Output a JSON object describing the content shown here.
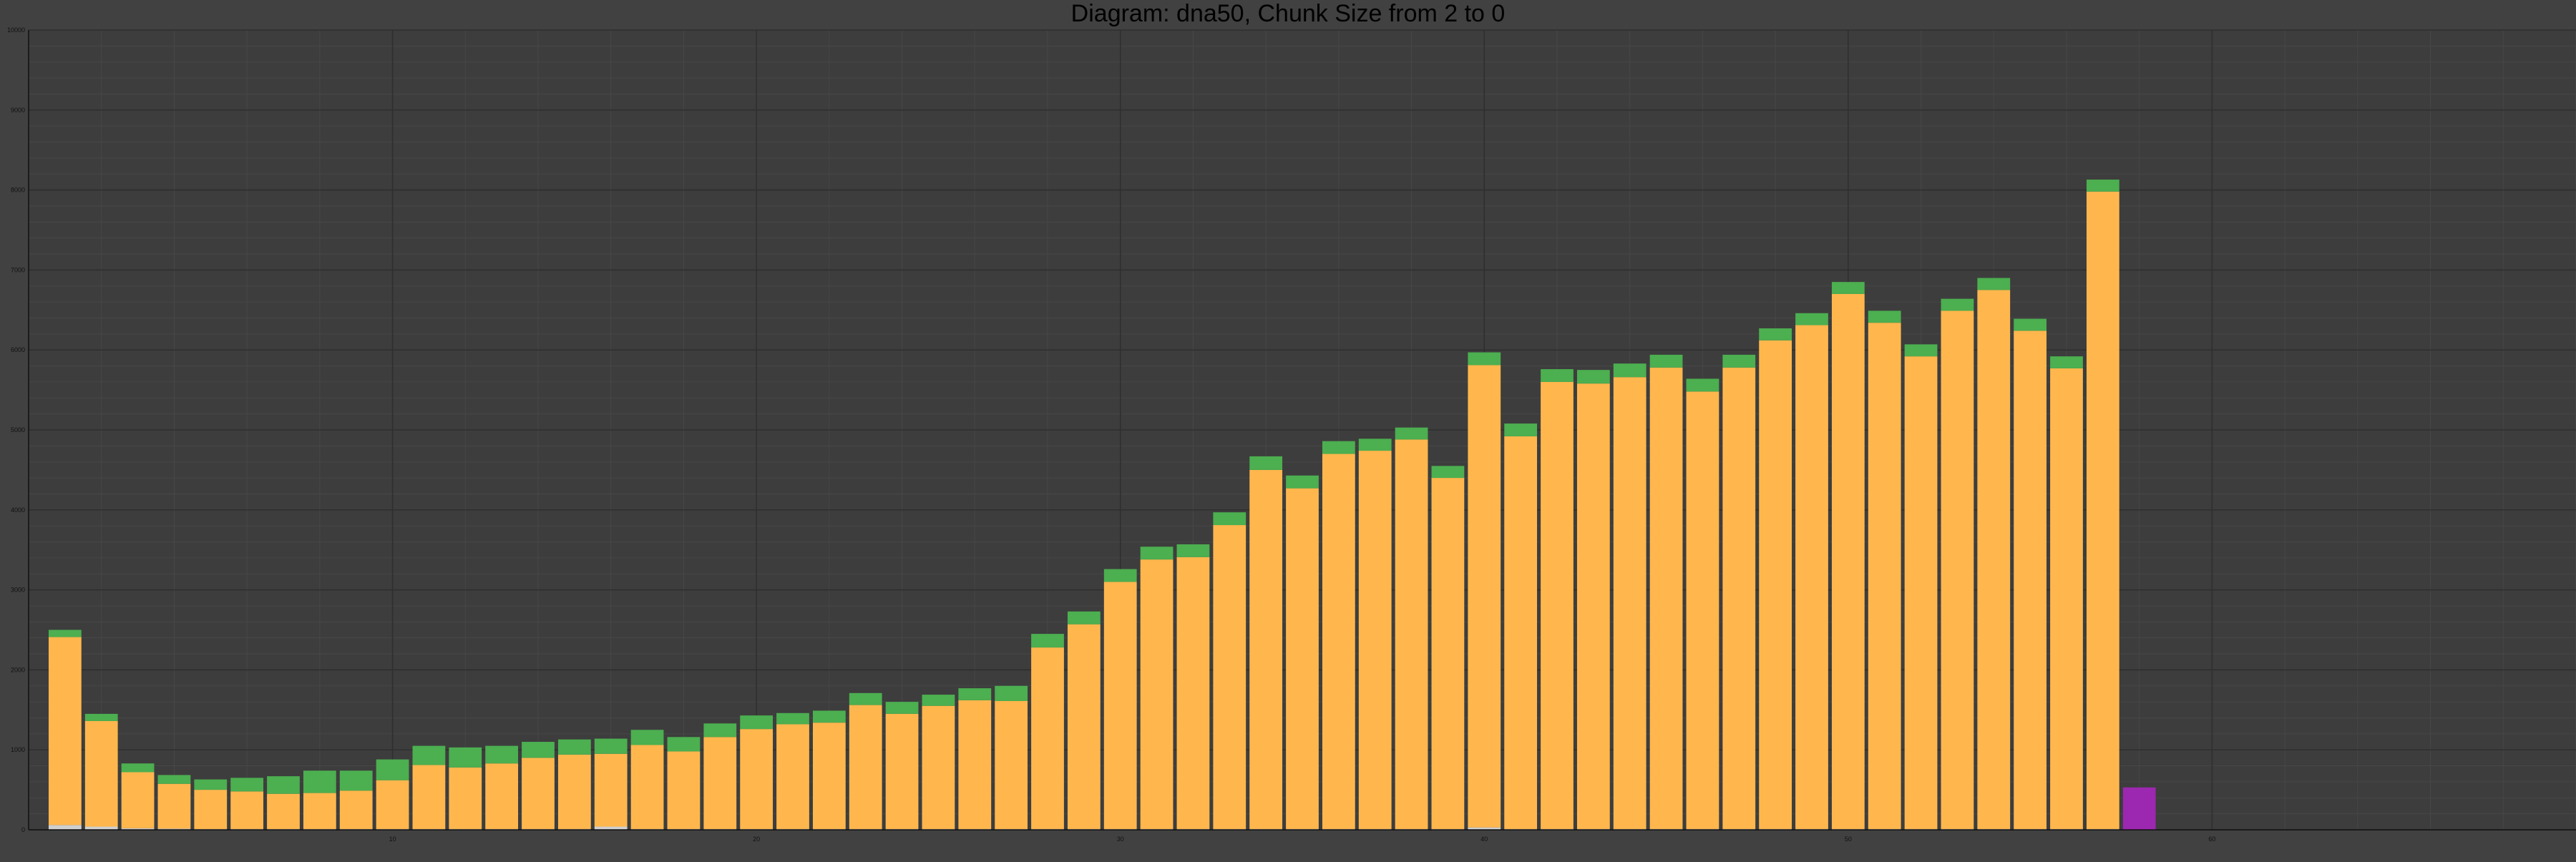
{
  "chart_data": {
    "type": "bar",
    "stacked": true,
    "title": "Diagram: dna50, Chunk Size from 2 to 0",
    "xlabel": "",
    "ylabel": "",
    "xlim": [
      0,
      70
    ],
    "ylim": [
      0,
      10000
    ],
    "grid": true,
    "legend": "none",
    "x_ticks": [
      "10",
      "20",
      "30",
      "40",
      "50",
      "60"
    ],
    "y_ticks": [
      "0",
      "1000",
      "2000",
      "3000",
      "4000",
      "5000",
      "6000",
      "7000",
      "8000",
      "9000",
      "10000"
    ],
    "x": [
      1,
      2,
      3,
      4,
      5,
      6,
      7,
      8,
      9,
      10,
      11,
      12,
      13,
      14,
      15,
      16,
      17,
      18,
      19,
      20,
      21,
      22,
      23,
      24,
      25,
      26,
      27,
      28,
      29,
      30,
      31,
      32,
      33,
      34,
      35,
      36,
      37,
      38,
      39,
      40,
      41,
      42,
      43,
      44,
      45,
      46,
      47,
      48,
      49,
      50,
      51,
      52,
      53,
      54,
      55,
      56,
      57,
      58
    ],
    "series": [
      {
        "color": "#cfcfcf",
        "values": [
          60,
          40,
          20,
          15,
          10,
          10,
          10,
          10,
          10,
          10,
          10,
          10,
          10,
          10,
          10,
          40,
          10,
          10,
          10,
          10,
          10,
          10,
          10,
          10,
          10,
          10,
          10,
          10,
          10,
          10,
          10,
          10,
          10,
          10,
          10,
          10,
          10,
          10,
          10,
          30,
          10,
          10,
          10,
          10,
          10,
          10,
          10,
          10,
          10,
          10,
          10,
          10,
          10,
          10,
          10,
          10,
          10,
          0
        ]
      },
      {
        "color": "#ffb74d",
        "values": [
          2350,
          1320,
          700,
          560,
          490,
          470,
          440,
          450,
          480,
          610,
          800,
          770,
          820,
          890,
          930,
          910,
          1050,
          970,
          1150,
          1250,
          1310,
          1330,
          1550,
          1440,
          1540,
          1610,
          1600,
          2270,
          2560,
          3090,
          3370,
          3400,
          3800,
          4490,
          4260,
          4690,
          4730,
          4870,
          4390,
          5780,
          4910,
          5590,
          5570,
          5650,
          5770,
          5470,
          5770,
          6110,
          6300,
          6690,
          6330,
          5910,
          6480,
          6740,
          6230,
          5760,
          7970,
          0
        ]
      },
      {
        "color": "#4caf50",
        "values": [
          90,
          90,
          110,
          110,
          130,
          170,
          220,
          280,
          250,
          260,
          240,
          250,
          220,
          200,
          190,
          190,
          190,
          180,
          170,
          170,
          140,
          150,
          150,
          150,
          140,
          150,
          190,
          170,
          160,
          160,
          160,
          160,
          160,
          170,
          160,
          160,
          150,
          150,
          150,
          160,
          160,
          160,
          170,
          170,
          160,
          160,
          160,
          150,
          150,
          150,
          150,
          150,
          150,
          150,
          150,
          150,
          150,
          0
        ]
      },
      {
        "color": "#9c27b0",
        "values": [
          0,
          0,
          0,
          0,
          0,
          0,
          0,
          0,
          0,
          0,
          0,
          0,
          0,
          0,
          0,
          0,
          0,
          0,
          0,
          0,
          0,
          0,
          0,
          0,
          0,
          0,
          0,
          0,
          0,
          0,
          0,
          0,
          0,
          0,
          0,
          0,
          0,
          0,
          0,
          0,
          0,
          0,
          0,
          0,
          0,
          0,
          0,
          0,
          0,
          0,
          0,
          0,
          0,
          0,
          0,
          0,
          0,
          530
        ]
      }
    ]
  }
}
